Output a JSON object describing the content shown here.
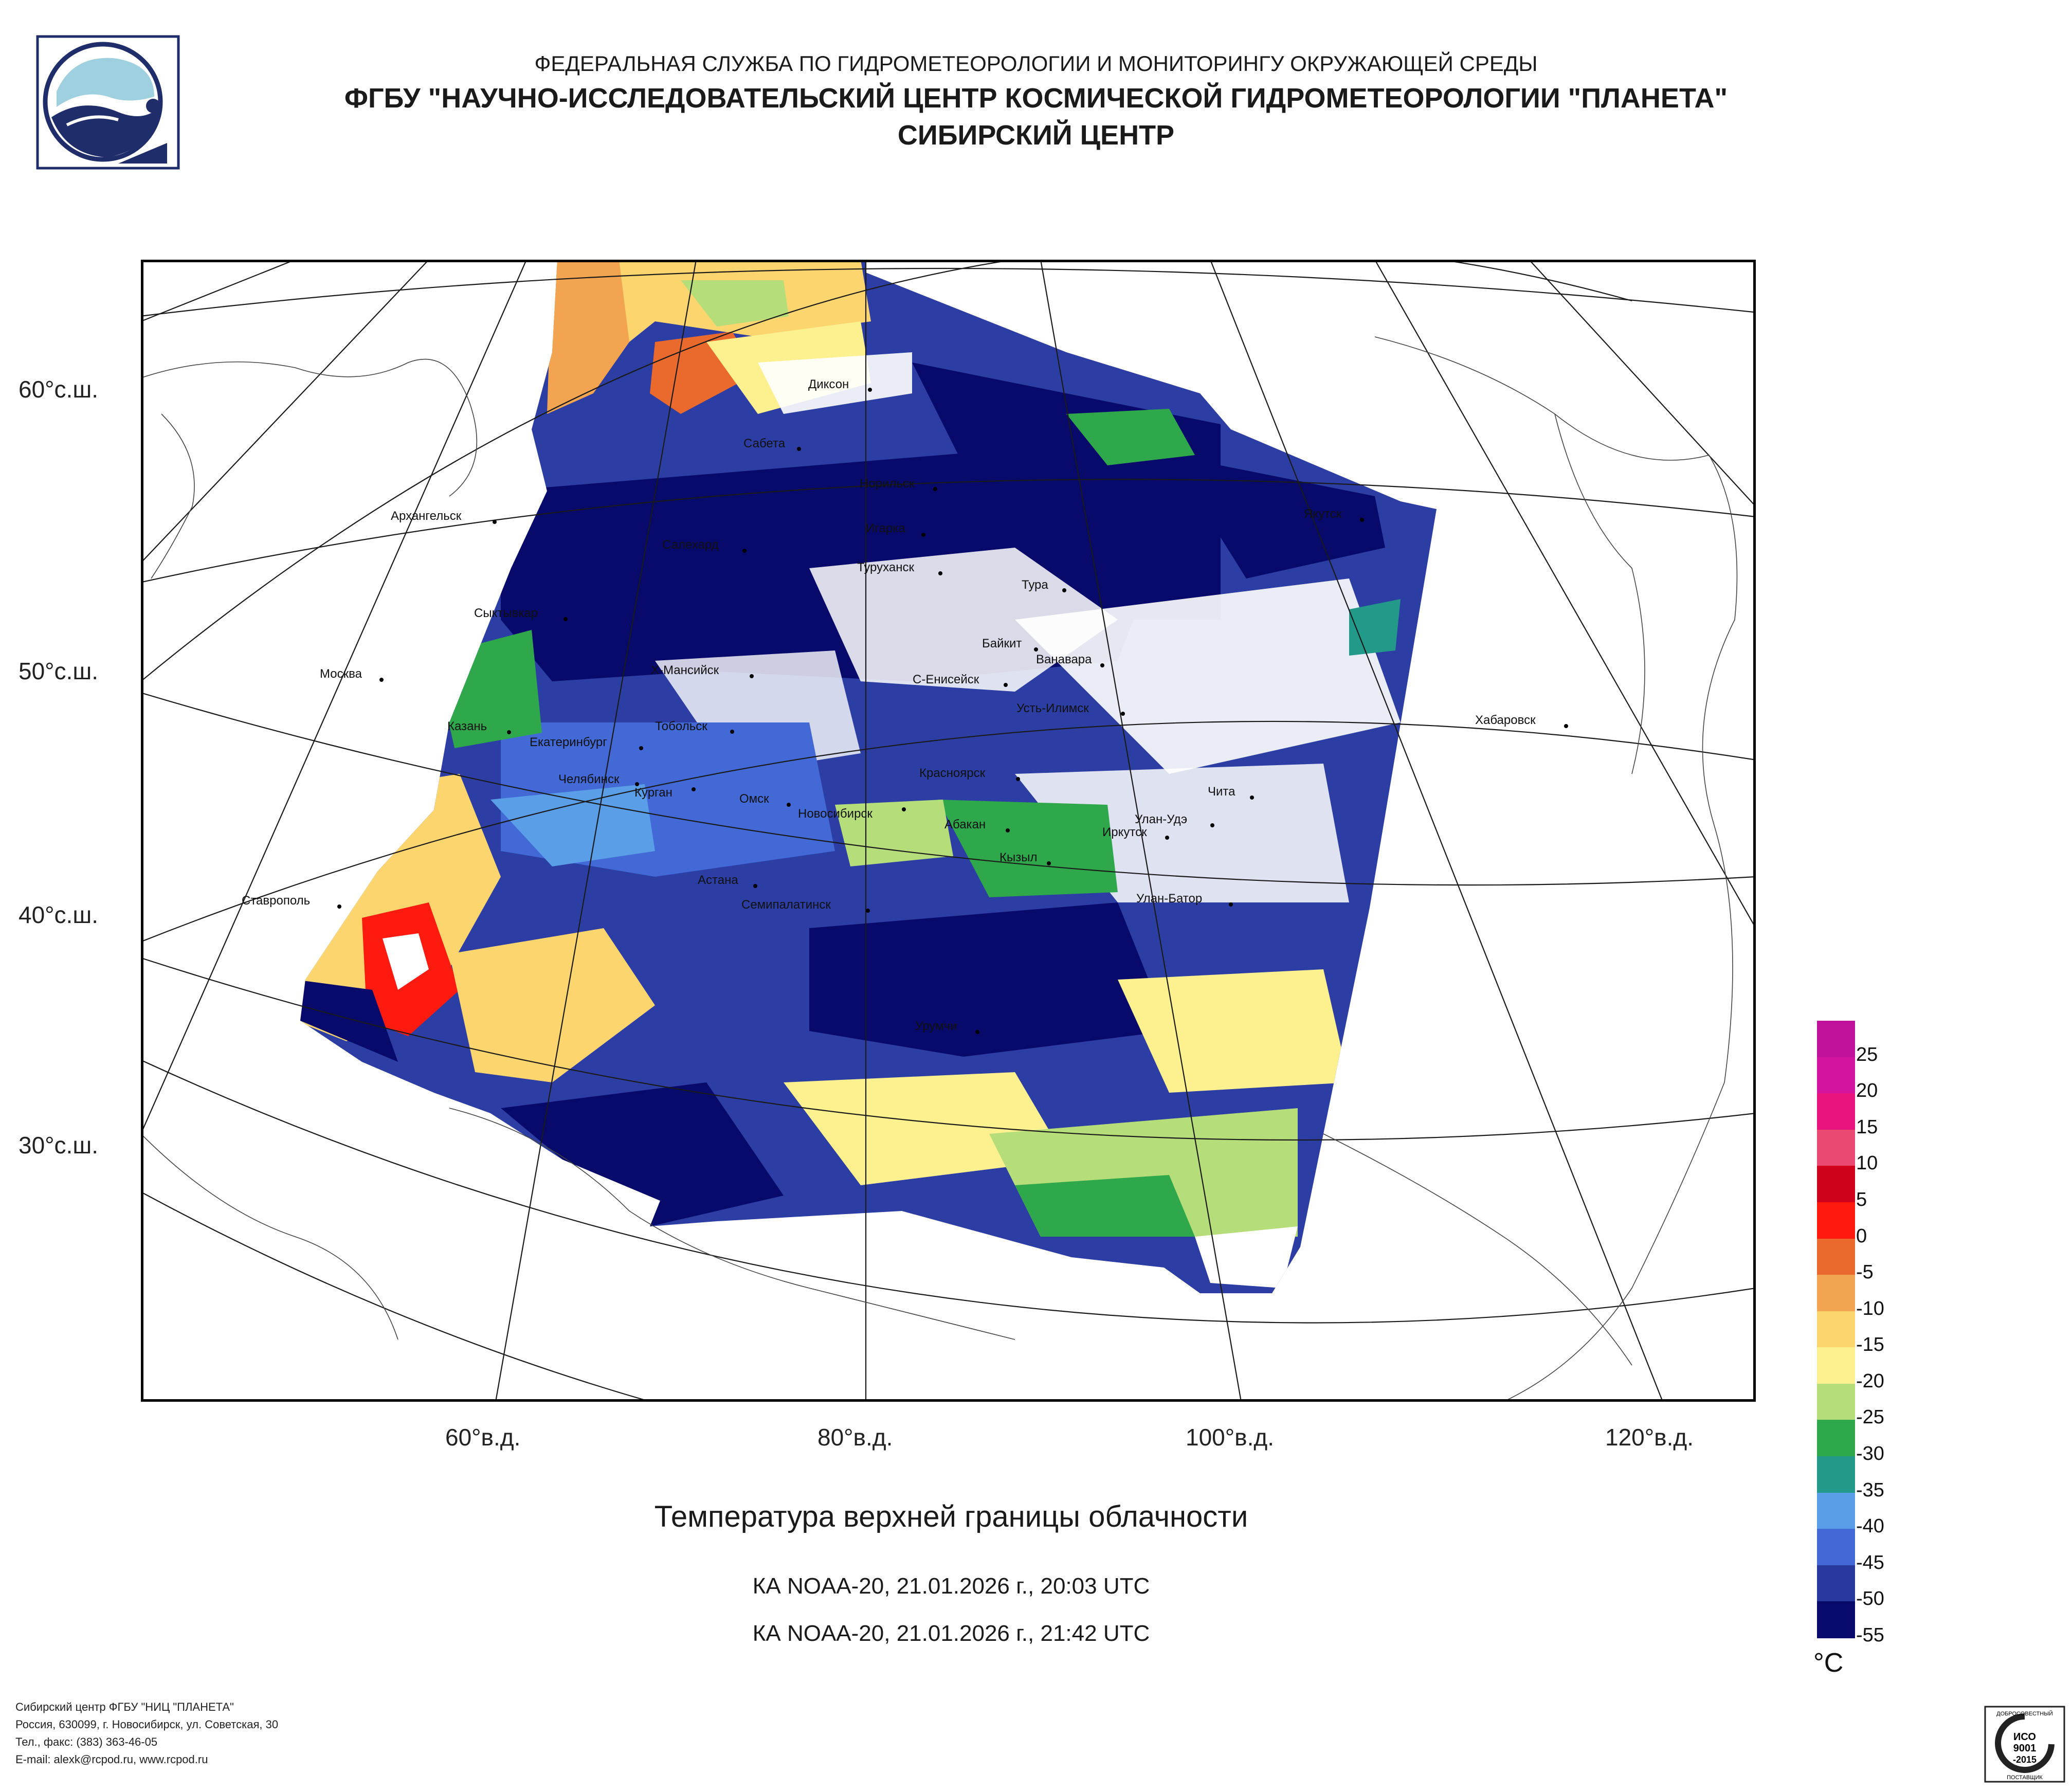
{
  "header": {
    "line1": "ФЕДЕРАЛЬНАЯ СЛУЖБА ПО ГИДРОМЕТЕОРОЛОГИИ И МОНИТОРИНГУ ОКРУЖАЮЩЕЙ СРЕДЫ",
    "line2": "ФГБУ \"НАУЧНО-ИССЛЕДОВАТЕЛЬСКИЙ ЦЕНТР КОСМИЧЕСКОЙ ГИДРОМЕТЕОРОЛОГИИ \"ПЛАНЕТА\"",
    "line3": "СИБИРСКИЙ ЦЕНТР"
  },
  "map": {
    "lat_labels": [
      "60°с.ш.",
      "50°с.ш.",
      "40°с.ш.",
      "30°с.ш."
    ],
    "lon_labels": [
      "60°в.д.",
      "80°в.д.",
      "100°в.д.",
      "120°в.д."
    ],
    "cities": [
      {
        "name": "Диксон"
      },
      {
        "name": "Сабета"
      },
      {
        "name": "Норильск"
      },
      {
        "name": "Игарка"
      },
      {
        "name": "Архангельск"
      },
      {
        "name": "Салехард"
      },
      {
        "name": "Туруханск"
      },
      {
        "name": "Якутск"
      },
      {
        "name": "Тура"
      },
      {
        "name": "Сыктывкар"
      },
      {
        "name": "Байкит"
      },
      {
        "name": "Ванавара"
      },
      {
        "name": "Москва"
      },
      {
        "name": "Х-Мансийск"
      },
      {
        "name": "С-Енисейск"
      },
      {
        "name": "Усть-Илимск"
      },
      {
        "name": "Хабаровск"
      },
      {
        "name": "Казань"
      },
      {
        "name": "Тобольск"
      },
      {
        "name": "Екатеринбург"
      },
      {
        "name": "Челябинск"
      },
      {
        "name": "Курган"
      },
      {
        "name": "Красноярск"
      },
      {
        "name": "Чита"
      },
      {
        "name": "Омск"
      },
      {
        "name": "Новосибирск"
      },
      {
        "name": "Абакан"
      },
      {
        "name": "Улан-Удэ"
      },
      {
        "name": "Иркутск"
      },
      {
        "name": "Кызыл"
      },
      {
        "name": "Астана"
      },
      {
        "name": "Ставрополь"
      },
      {
        "name": "Улан-Батор"
      },
      {
        "name": "Семипалатинск"
      },
      {
        "name": "Урумчи"
      }
    ]
  },
  "caption": {
    "title": "Температура верхней границы облачности",
    "pass1": "КА NOAA-20, 21.01.2026 г., 20:03 UTC",
    "pass2": "КА NOAA-20, 21.01.2026 г., 21:42 UTC"
  },
  "colorbar": {
    "unit": "°C",
    "labels": [
      "25",
      "20",
      "15",
      "10",
      "5",
      "0",
      "-5",
      "-10",
      "-15",
      "-20",
      "-25",
      "-30",
      "-35",
      "-40",
      "-45",
      "-50",
      "-55"
    ],
    "colors": [
      "#c0119a",
      "#d2149f",
      "#e8137c",
      "#ea4a72",
      "#d0021b",
      "#ff1a10",
      "#ea6a2e",
      "#f3a450",
      "#fdd56e",
      "#fdf08e",
      "#b5de7a",
      "#2ea84a",
      "#23998a",
      "#5a9ee8",
      "#4269d6",
      "#28399d",
      "#070a6b"
    ]
  },
  "footer": {
    "line1": "Сибирский центр ФГБУ \"НИЦ \"ПЛАНЕТА\"",
    "line2": "Россия, 630099, г. Новосибирск, ул. Советская, 30",
    "line3": "Тел., факс: (383) 363-46-05",
    "line4": "E-mail: alexk@rcpod.ru, www.rcpod.ru"
  },
  "certificate": {
    "top": "ДОБРОСОВЕСТНЫЙ",
    "iso": "ИСО",
    "num": "9001",
    "year": "-2015",
    "bottom": "ПОСТАВЩИК"
  }
}
